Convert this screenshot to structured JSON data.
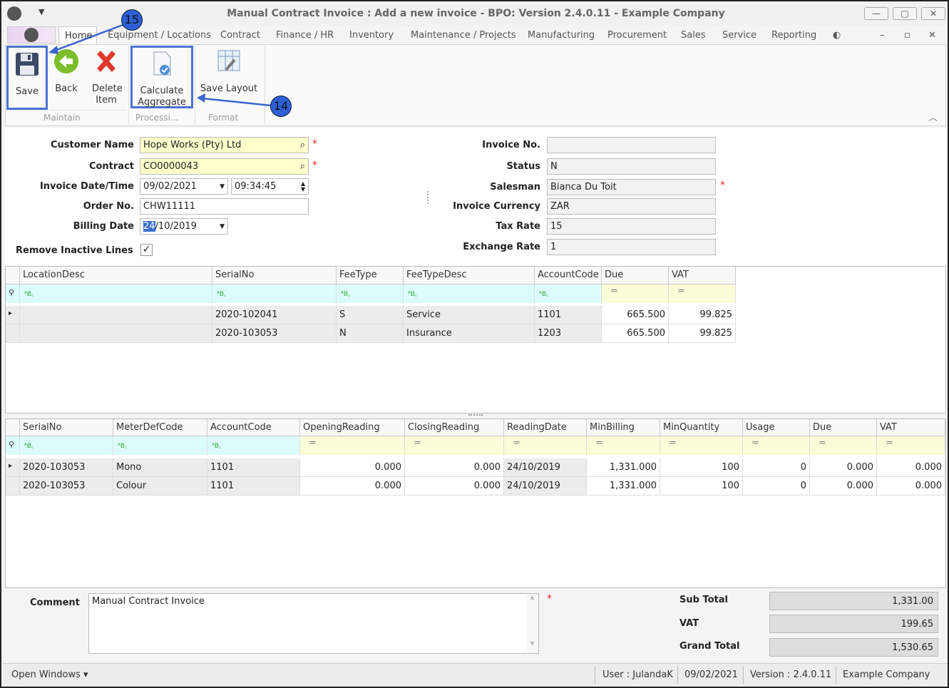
{
  "window": {
    "title": "Manual Contract Invoice : Add a new invoice - BPO: Version 2.4.0.11 - Example Company",
    "minimize": "—",
    "restore": "▢",
    "close": "✕"
  },
  "menu_tabs": [
    "Home",
    "Equipment / Locations",
    "Contract",
    "Finance / HR",
    "Inventory",
    "Maintenance / Projects",
    "Manufacturing",
    "Procurement",
    "Sales",
    "Service",
    "Reporting"
  ],
  "ribbon": {
    "save": "Save",
    "back": "Back",
    "delete": "Delete Item",
    "calculate_aggregate": "Calculate Aggregate",
    "save_layout": "Save Layout",
    "groups": [
      "Maintain",
      "Processi...",
      "Format"
    ]
  },
  "annotations": {
    "step15": "15",
    "step14": "14"
  },
  "form": {
    "customer_name_label": "Customer Name",
    "customer_name": "Hope Works (Pty) Ltd",
    "contract_label": "Contract",
    "contract": "CO0000043",
    "invoice_datetime_label": "Invoice Date/Time",
    "invoice_date": "09/02/2021",
    "invoice_time": "09:34:45",
    "order_no_label": "Order No.",
    "order_no": "CHW11111",
    "billing_date_label": "Billing Date",
    "billing_date_sel": "24",
    "billing_date_rest": "/10/2019",
    "remove_inactive_label": "Remove Inactive Lines",
    "remove_inactive_checked": true,
    "invoice_no_label": "Invoice No.",
    "invoice_no": "",
    "status_label": "Status",
    "status": "N",
    "salesman_label": "Salesman",
    "salesman": "Bianca Du Toit",
    "currency_label": "Invoice Currency",
    "currency": "ZAR",
    "tax_rate_label": "Tax Rate",
    "tax_rate": "15",
    "exchange_rate_label": "Exchange Rate",
    "exchange_rate": "1",
    "required": "*"
  },
  "grid1": {
    "columns": [
      "LocationDesc",
      "SerialNo",
      "FeeType",
      "FeeTypeDesc",
      "AccountCode",
      "Due",
      "VAT"
    ],
    "filter_types": [
      "text",
      "text",
      "text",
      "text",
      "text",
      "num",
      "num"
    ],
    "rows": [
      [
        "",
        "2020-102041",
        "S",
        "Service",
        "1101",
        "665.500",
        "99.825"
      ],
      [
        "",
        "2020-103053",
        "N",
        "Insurance",
        "1203",
        "665.500",
        "99.825"
      ]
    ]
  },
  "grid2": {
    "columns": [
      "SerialNo",
      "MeterDefCode",
      "AccountCode",
      "OpeningReading",
      "ClosingReading",
      "ReadingDate",
      "MinBilling",
      "MinQuantity",
      "Usage",
      "Due",
      "VAT"
    ],
    "filter_types": [
      "text",
      "text",
      "text",
      "num",
      "num",
      "num",
      "num",
      "num",
      "num",
      "num",
      "num"
    ],
    "rows": [
      [
        "2020-103053",
        "Mono",
        "1101",
        "0.000",
        "0.000",
        "24/10/2019",
        "1,331.000",
        "100",
        "0",
        "0.000",
        "0.000"
      ],
      [
        "2020-103053",
        "Colour",
        "1101",
        "0.000",
        "0.000",
        "24/10/2019",
        "1,331.000",
        "100",
        "0",
        "0.000",
        "0.000"
      ]
    ]
  },
  "footer": {
    "comment_label": "Comment",
    "comment": "Manual Contract Invoice",
    "sub_total_label": "Sub Total",
    "sub_total": "1,331.00",
    "vat_label": "VAT",
    "vat": "199.65",
    "grand_total_label": "Grand Total",
    "grand_total": "1,530.65"
  },
  "status_bar": {
    "open_windows": "Open Windows ▾",
    "user": "User : JulandaK",
    "date": "09/02/2021",
    "version": "Version : 2.4.0.11",
    "company": "Example Company"
  }
}
